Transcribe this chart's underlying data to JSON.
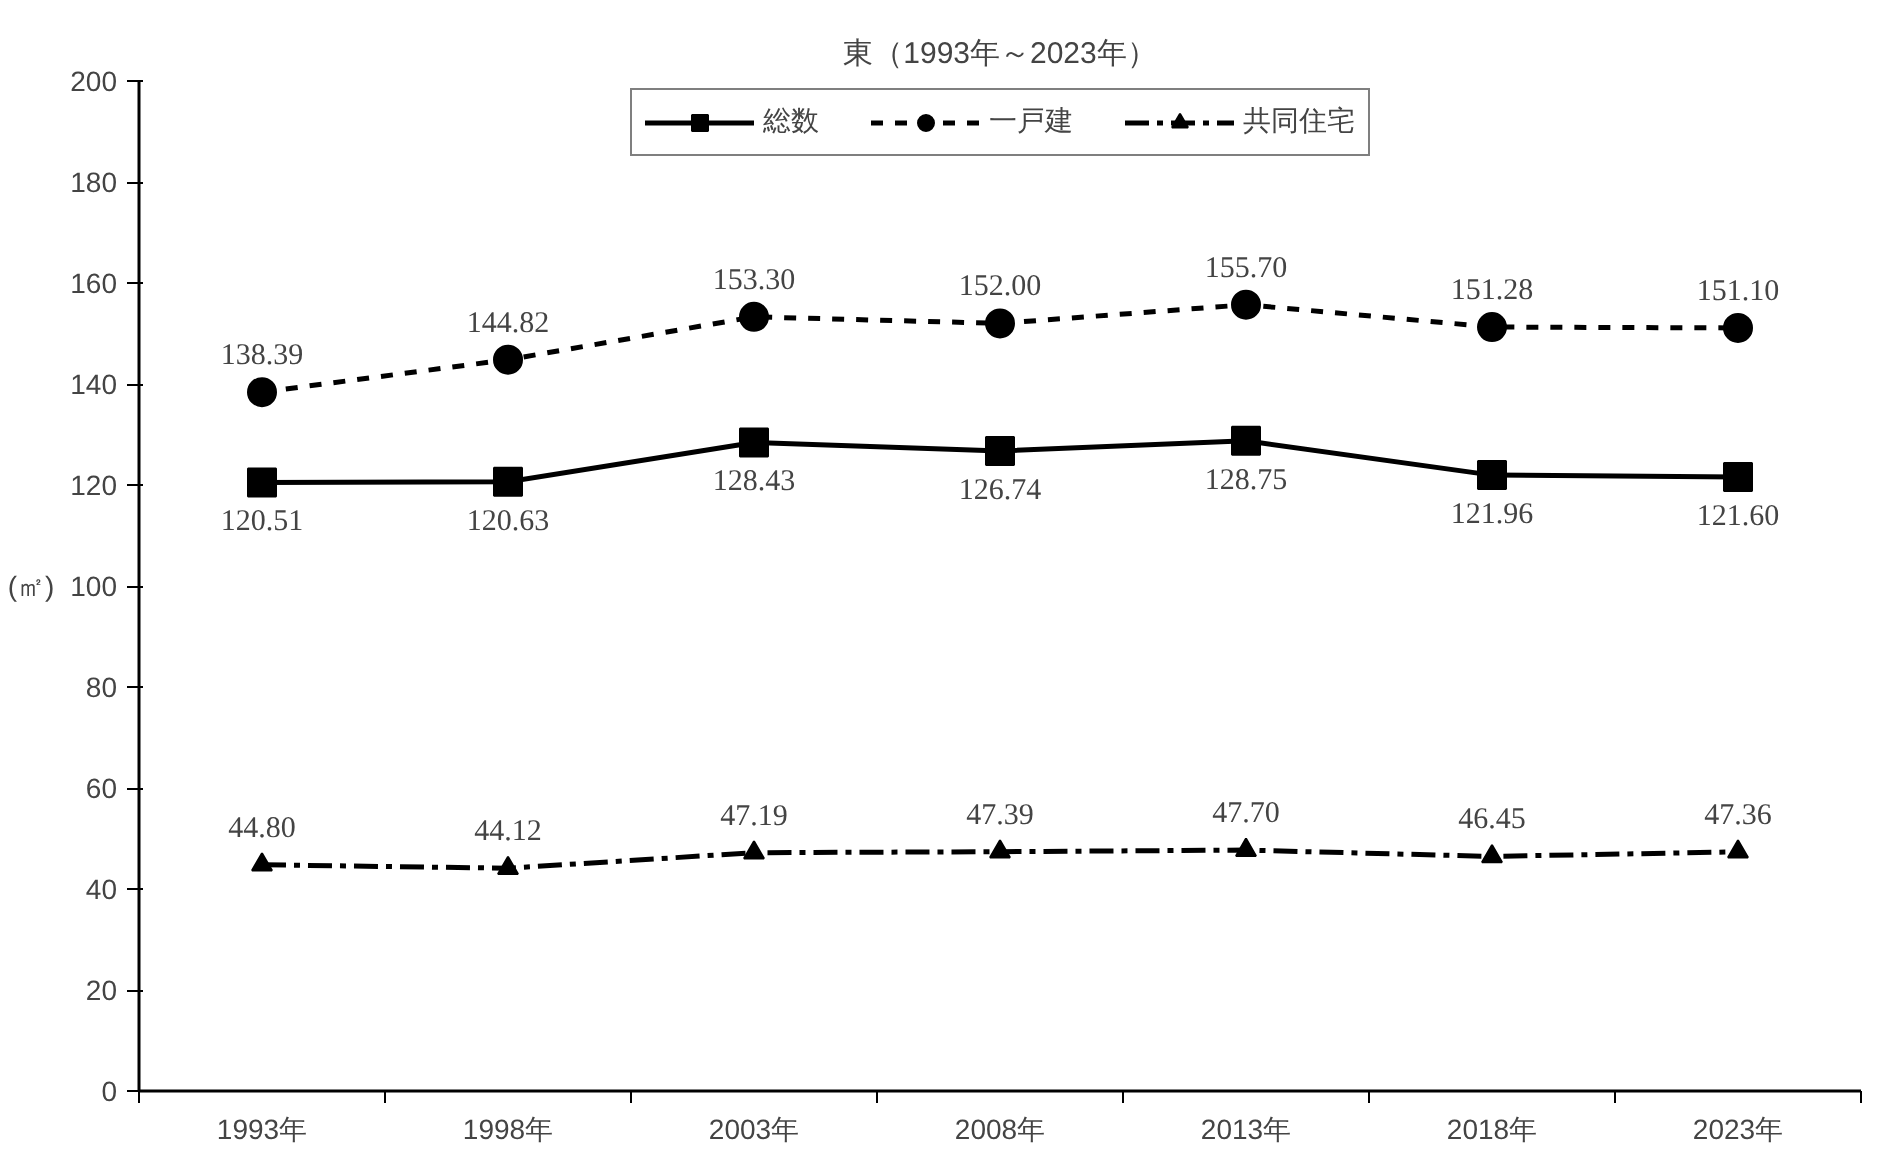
{
  "chart_data": {
    "type": "line",
    "title": "東（1993年～2023年）",
    "ylabel": "(㎡)",
    "categories": [
      "1993年",
      "1998年",
      "2003年",
      "2008年",
      "2013年",
      "2018年",
      "2023年"
    ],
    "series": [
      {
        "name": "総数",
        "color": "#000000",
        "marker": "square",
        "line_style": "solid",
        "values": [
          120.51,
          120.63,
          128.43,
          126.74,
          128.75,
          121.96,
          121.6
        ],
        "value_labels": [
          "120.51",
          "120.63",
          "128.43",
          "126.74",
          "128.75",
          "121.96",
          "121.60"
        ]
      },
      {
        "name": "一戸建",
        "color": "#000000",
        "marker": "circle",
        "line_style": "dashed",
        "values": [
          138.39,
          144.82,
          153.3,
          152.0,
          155.7,
          151.28,
          151.1
        ],
        "value_labels": [
          "138.39",
          "144.82",
          "153.30",
          "152.00",
          "155.70",
          "151.28",
          "151.10"
        ]
      },
      {
        "name": "共同住宅",
        "color": "#000000",
        "marker": "triangle",
        "line_style": "dashdot",
        "values": [
          44.8,
          44.12,
          47.19,
          47.39,
          47.7,
          46.45,
          47.36
        ],
        "value_labels": [
          "44.80",
          "44.12",
          "47.19",
          "47.39",
          "47.70",
          "46.45",
          "47.36"
        ]
      }
    ],
    "ylim": [
      0,
      200
    ],
    "yticks": [
      0,
      20,
      40,
      60,
      80,
      100,
      120,
      140,
      160,
      180,
      200
    ],
    "grid": false,
    "legend": "top"
  }
}
